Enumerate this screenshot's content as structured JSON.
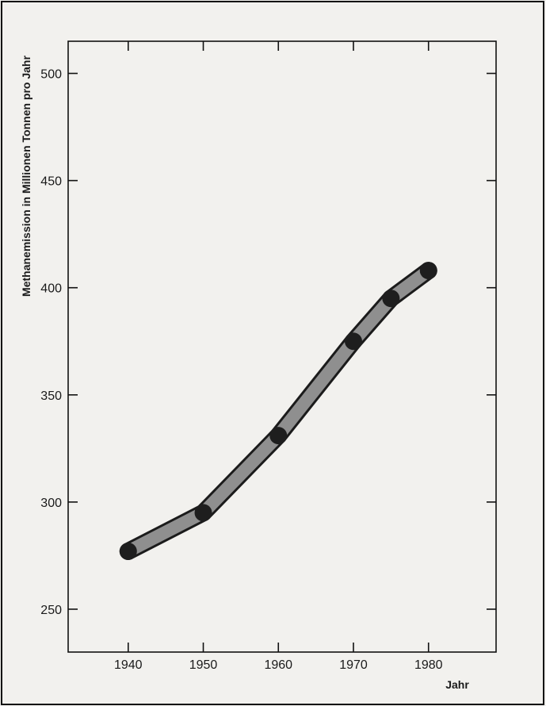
{
  "colors": {
    "background": "#f2f1ee",
    "frame": "#111111",
    "line_band": "#8f8f8f",
    "line_outline": "#1b1b1b",
    "point": "#1e1e1e"
  },
  "chart_data": {
    "type": "line",
    "title": "",
    "ylabel": "Methanemission in Millionen Tonnen pro Jahr",
    "xlabel": "Jahr",
    "xlim": [
      1932,
      1989
    ],
    "ylim": [
      230,
      515
    ],
    "x_ticks": [
      1940,
      1950,
      1960,
      1970,
      1980
    ],
    "y_ticks": [
      250,
      300,
      350,
      400,
      450,
      500
    ],
    "x_tick_labels": [
      "1940",
      "1950",
      "1960",
      "1970",
      "1980"
    ],
    "y_tick_labels": [
      "250",
      "300",
      "350",
      "400",
      "450",
      "500"
    ],
    "grid": false,
    "series": [
      {
        "x": [
          1940,
          1950,
          1960,
          1970,
          1975,
          1980
        ],
        "y": [
          277,
          295,
          331,
          375,
          395,
          408
        ]
      }
    ]
  }
}
